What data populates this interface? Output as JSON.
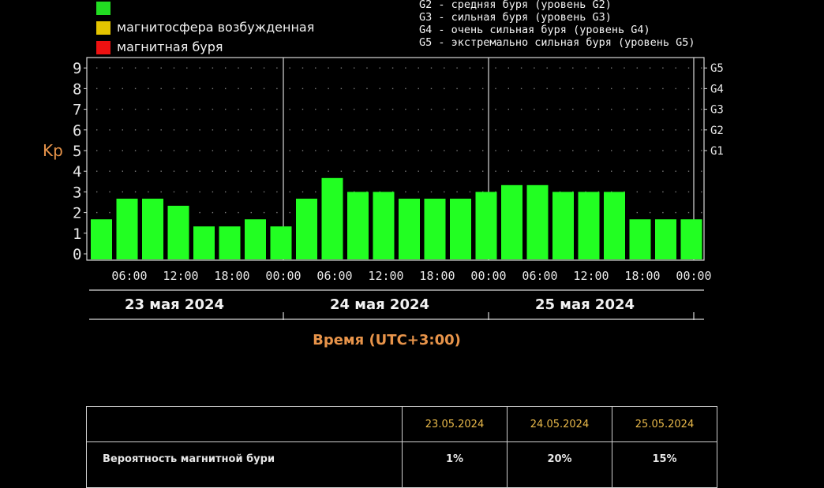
{
  "legend": {
    "items": [
      {
        "label": "",
        "color": "#22dd22"
      },
      {
        "label": "магнитосфера возбужденная",
        "color": "#e4c400"
      },
      {
        "label": "магнитная буря",
        "color": "#ee1111"
      }
    ],
    "storm_levels": [
      "G2 - средняя буря (уровень G2)",
      "G3 - сильная буря (уровень G3)",
      "G4 - очень сильная буря (уровень G4)",
      "G5 - экстремально сильная буря (уровень G5)"
    ]
  },
  "chart_data": {
    "type": "bar",
    "ylabel": "Kp",
    "xlabel": "Время (UTC+3:00)",
    "ylim": [
      0,
      9
    ],
    "yticks": [
      "0",
      "1",
      "2",
      "3",
      "4",
      "5",
      "6",
      "7",
      "8",
      "9"
    ],
    "g_levels": [
      {
        "label": "G1",
        "kp": 5
      },
      {
        "label": "G2",
        "kp": 6
      },
      {
        "label": "G3",
        "kp": 7
      },
      {
        "label": "G4",
        "kp": 8
      },
      {
        "label": "G5",
        "kp": 9
      }
    ],
    "days": [
      "23 мая 2024",
      "24 мая 2024",
      "25 мая 2024"
    ],
    "time_ticks": [
      "06:00",
      "12:00",
      "18:00",
      "00:00"
    ],
    "bar_color": "#22ff22",
    "values": [
      1.67,
      2.67,
      2.67,
      2.33,
      1.33,
      1.33,
      1.67,
      1.33,
      2.67,
      3.67,
      3.0,
      3.0,
      2.67,
      2.67,
      2.67,
      3.0,
      3.33,
      3.33,
      3.0,
      3.0,
      3.0,
      1.67,
      1.67,
      1.67
    ]
  },
  "forecast": {
    "dates": [
      "23.05.2024",
      "24.05.2024",
      "25.05.2024"
    ],
    "row_label": "Вероятность магнитной бури",
    "values": [
      "1%",
      "20%",
      "15%"
    ]
  }
}
